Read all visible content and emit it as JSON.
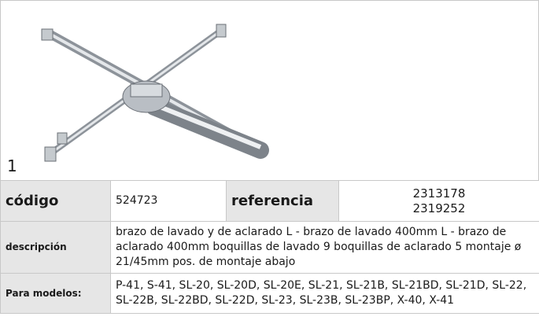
{
  "image_index": "1",
  "table": {
    "code_label": "código",
    "code_value": "524723",
    "reference_label": "referencia",
    "reference_values": [
      "2313178",
      "2319252"
    ],
    "description_label": "descripción",
    "description_text": "brazo de lavado y de aclarado  L - brazo de lavado 400mm L - brazo de aclarado 400mm boquillas de lavado 9 boquillas de aclarado 5 montaje ø 21/45mm pos. de montaje abajo",
    "models_label": "Para modelos:",
    "models_text": "P-41, S-41, SL-20, SL-20D, SL-20E, SL-21, SL-21B, SL-21BD, SL-21D, SL-22, SL-22B, SL-22BD, SL-22D, SL-23, SL-23B, SL-23BP, X-40, X-41"
  }
}
